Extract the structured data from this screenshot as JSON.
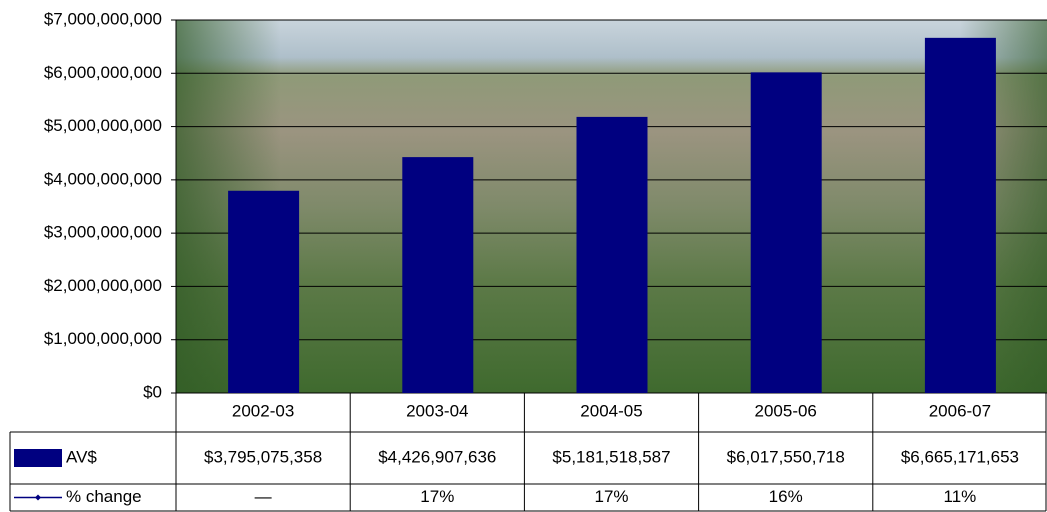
{
  "chart_data": {
    "type": "bar",
    "categories": [
      "2002-03",
      "2003-04",
      "2004-05",
      "2005-06",
      "2006-07"
    ],
    "series": [
      {
        "name": "AV$",
        "color": "#000080",
        "values": [
          3795075358,
          4426907636,
          5181518587,
          6017550718,
          6665171653
        ],
        "value_labels": [
          "$3,795,075,358",
          "$4,426,907,636",
          "$5,181,518,587",
          "$6,017,550,718",
          "$6,665,171,653"
        ]
      },
      {
        "name": "% change",
        "color": "#000080",
        "values": [
          null,
          17,
          17,
          16,
          11
        ],
        "value_labels": [
          "—",
          "17%",
          "17%",
          "16%",
          "11%"
        ]
      }
    ],
    "ylim": [
      0,
      7000000000
    ],
    "yticks": [
      {
        "value": 0,
        "label": "$0"
      },
      {
        "value": 1000000000,
        "label": "$1,000,000,000"
      },
      {
        "value": 2000000000,
        "label": "$2,000,000,000"
      },
      {
        "value": 3000000000,
        "label": "$3,000,000,000"
      },
      {
        "value": 4000000000,
        "label": "$4,000,000,000"
      },
      {
        "value": 5000000000,
        "label": "$5,000,000,000"
      },
      {
        "value": 6000000000,
        "label": "$6,000,000,000"
      },
      {
        "value": 7000000000,
        "label": "$7,000,000,000"
      }
    ],
    "grid": true,
    "data_table": true
  }
}
